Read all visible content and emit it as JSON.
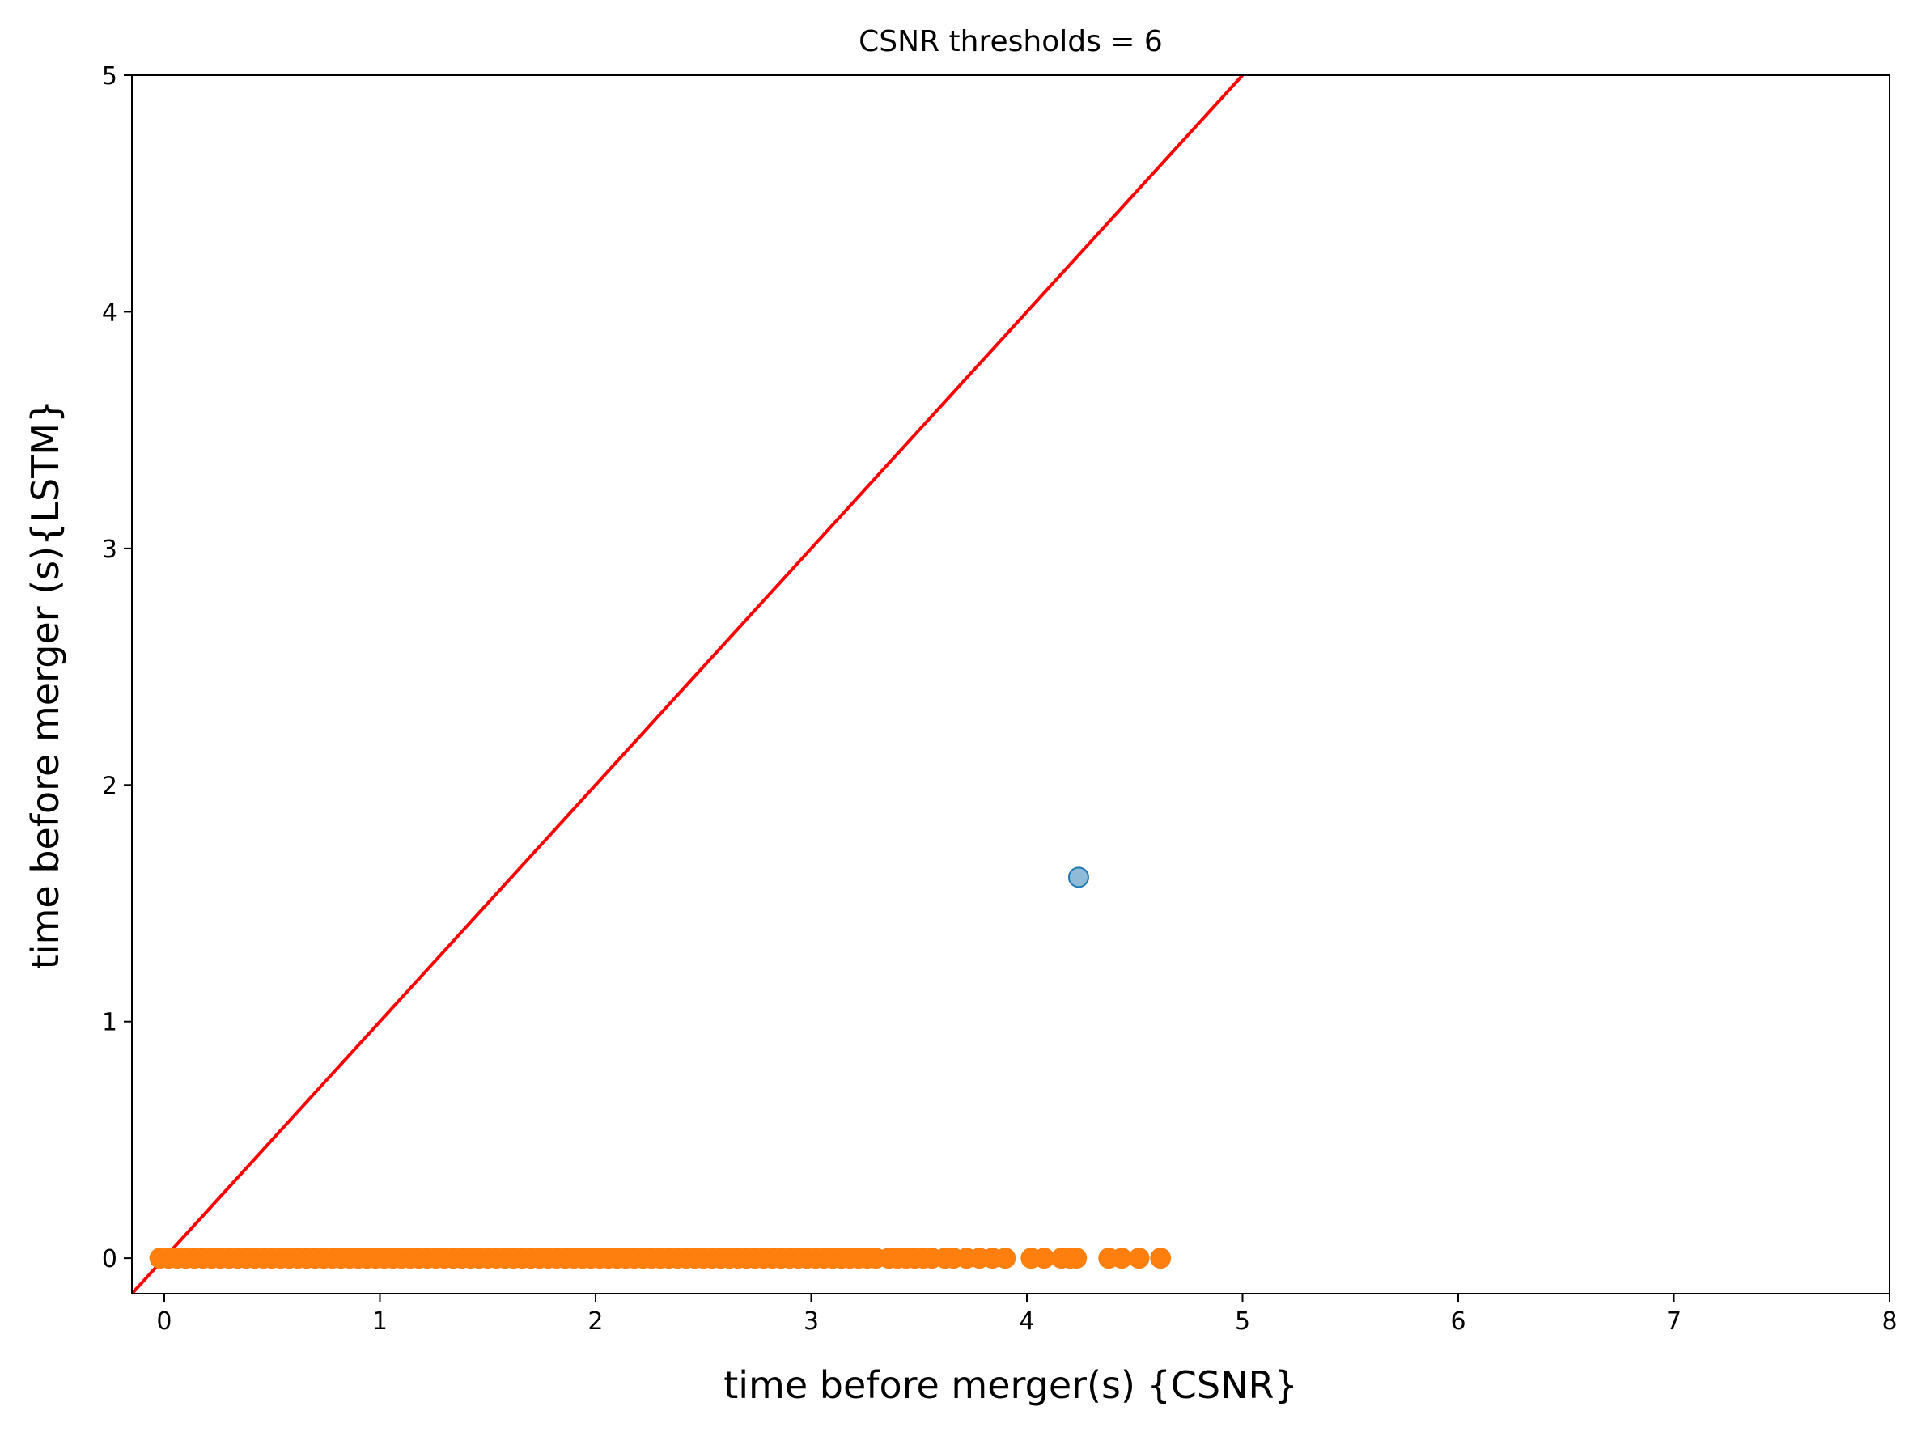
{
  "chart_data": {
    "type": "scatter",
    "title": "CSNR thresholds = 6",
    "xlabel": "time before merger(s) {CSNR}",
    "ylabel": "time before merger (s){LSTM}",
    "xlim": [
      -0.15,
      8
    ],
    "ylim": [
      -0.15,
      5
    ],
    "xticks": [
      "0",
      "1",
      "2",
      "3",
      "4",
      "5",
      "6",
      "7",
      "8"
    ],
    "yticks": [
      "0",
      "1",
      "2",
      "3",
      "4",
      "5"
    ],
    "grid": false,
    "reference_line": {
      "type": "y=x",
      "color": "#ff0000"
    },
    "series": [
      {
        "color": "#1f77b4",
        "alpha": 0.5,
        "points": [
          [
            4.24,
            1.61
          ]
        ]
      },
      {
        "color": "#ff7f0e",
        "alpha": 1.0,
        "y_constant": 0,
        "x_values": [
          -0.02,
          0.02,
          0.06,
          0.1,
          0.14,
          0.18,
          0.22,
          0.26,
          0.3,
          0.34,
          0.38,
          0.42,
          0.46,
          0.5,
          0.54,
          0.58,
          0.62,
          0.66,
          0.7,
          0.74,
          0.78,
          0.82,
          0.86,
          0.9,
          0.94,
          0.98,
          1.02,
          1.06,
          1.1,
          1.14,
          1.18,
          1.22,
          1.26,
          1.3,
          1.34,
          1.38,
          1.42,
          1.46,
          1.5,
          1.54,
          1.58,
          1.62,
          1.66,
          1.7,
          1.74,
          1.78,
          1.82,
          1.86,
          1.9,
          1.94,
          1.98,
          2.02,
          2.06,
          2.1,
          2.14,
          2.18,
          2.22,
          2.26,
          2.3,
          2.34,
          2.38,
          2.42,
          2.46,
          2.5,
          2.54,
          2.58,
          2.62,
          2.66,
          2.7,
          2.74,
          2.78,
          2.82,
          2.86,
          2.9,
          2.94,
          2.98,
          3.02,
          3.06,
          3.1,
          3.14,
          3.18,
          3.22,
          3.26,
          3.3,
          3.36,
          3.4,
          3.44,
          3.48,
          3.52,
          3.56,
          3.62,
          3.66,
          3.72,
          3.78,
          3.84,
          3.9,
          4.02,
          4.08,
          4.16,
          4.2,
          4.23,
          4.38,
          4.44,
          4.52,
          4.62
        ]
      }
    ]
  }
}
